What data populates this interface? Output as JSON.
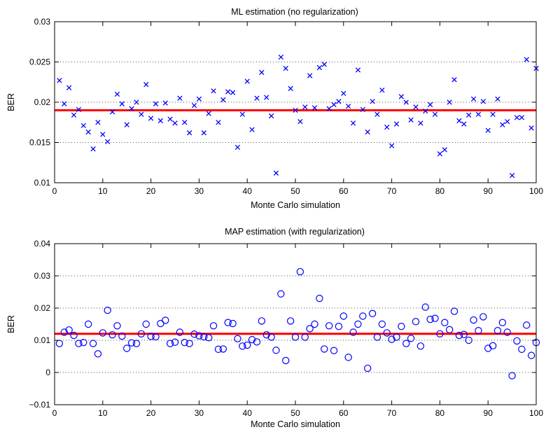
{
  "chart_data": [
    {
      "type": "scatter",
      "title": "ML estimation (no regularization)",
      "xlabel": "Monte Carlo simulation",
      "ylabel": "BER",
      "xlim": [
        0,
        100
      ],
      "ylim": [
        0.01,
        0.03
      ],
      "xticks": [
        0,
        10,
        20,
        30,
        40,
        50,
        60,
        70,
        80,
        90,
        100
      ],
      "yticks": [
        0.01,
        0.015,
        0.02,
        0.025,
        0.03
      ],
      "ytick_labels": [
        "0.01",
        "0.015",
        "0.02",
        "0.025",
        "0.03"
      ],
      "grid": "y-dotted",
      "marker": "x",
      "marker_color": "#0000ff",
      "mean_line_color": "#ff0000",
      "mean_value": 0.019,
      "x": [
        1,
        2,
        3,
        4,
        5,
        6,
        7,
        8,
        9,
        10,
        11,
        12,
        13,
        14,
        15,
        16,
        17,
        18,
        19,
        20,
        21,
        22,
        23,
        24,
        25,
        26,
        27,
        28,
        29,
        30,
        31,
        32,
        33,
        34,
        35,
        36,
        37,
        38,
        39,
        40,
        41,
        42,
        43,
        44,
        45,
        46,
        47,
        48,
        49,
        50,
        51,
        52,
        53,
        54,
        55,
        56,
        57,
        58,
        59,
        60,
        61,
        62,
        63,
        64,
        65,
        66,
        67,
        68,
        69,
        70,
        71,
        72,
        73,
        74,
        75,
        76,
        77,
        78,
        79,
        80,
        81,
        82,
        83,
        84,
        85,
        86,
        87,
        88,
        89,
        90,
        91,
        92,
        93,
        94,
        95,
        96,
        97,
        98,
        99,
        100
      ],
      "y": [
        0.0227,
        0.0198,
        0.0218,
        0.0184,
        0.0191,
        0.0171,
        0.0163,
        0.0142,
        0.0175,
        0.016,
        0.0151,
        0.0188,
        0.021,
        0.0198,
        0.0172,
        0.0192,
        0.02,
        0.0185,
        0.0222,
        0.018,
        0.0198,
        0.0177,
        0.0199,
        0.0179,
        0.0174,
        0.0205,
        0.0175,
        0.0162,
        0.0196,
        0.0204,
        0.0162,
        0.0186,
        0.0214,
        0.0175,
        0.0203,
        0.0213,
        0.0212,
        0.0144,
        0.0185,
        0.0226,
        0.0166,
        0.0205,
        0.0237,
        0.0206,
        0.0183,
        0.0112,
        0.0256,
        0.0242,
        0.0217,
        0.019,
        0.0176,
        0.0194,
        0.0233,
        0.0193,
        0.0243,
        0.0247,
        0.0192,
        0.0197,
        0.0201,
        0.0211,
        0.0195,
        0.0174,
        0.024,
        0.0191,
        0.0163,
        0.0201,
        0.0185,
        0.0215,
        0.0169,
        0.0146,
        0.0173,
        0.0207,
        0.02,
        0.0178,
        0.0194,
        0.0174,
        0.0189,
        0.0197,
        0.0185,
        0.0136,
        0.0141,
        0.02,
        0.0228,
        0.0177,
        0.0173,
        0.0184,
        0.0204,
        0.0185,
        0.0201,
        0.0165,
        0.0185,
        0.0204,
        0.0172,
        0.0176,
        0.0109,
        0.0181,
        0.0181,
        0.0253,
        0.0168,
        0.0242
      ]
    },
    {
      "type": "scatter",
      "title": "MAP estimation (with regularization)",
      "xlabel": "Monte Carlo simulation",
      "ylabel": "BER",
      "xlim": [
        0,
        100
      ],
      "ylim": [
        -0.01,
        0.04
      ],
      "xticks": [
        0,
        10,
        20,
        30,
        40,
        50,
        60,
        70,
        80,
        90,
        100
      ],
      "yticks": [
        -0.01,
        0,
        0.01,
        0.02,
        0.03,
        0.04
      ],
      "ytick_labels": [
        "−0.01",
        "0",
        "0.01",
        "0.02",
        "0.03",
        "0.04"
      ],
      "grid": "y-dotted",
      "marker": "o",
      "marker_color": "#0000ff",
      "mean_line_color": "#ff0000",
      "mean_value": 0.012,
      "x": [
        1,
        2,
        3,
        4,
        5,
        6,
        7,
        8,
        9,
        10,
        11,
        12,
        13,
        14,
        15,
        16,
        17,
        18,
        19,
        20,
        21,
        22,
        23,
        24,
        25,
        26,
        27,
        28,
        29,
        30,
        31,
        32,
        33,
        34,
        35,
        36,
        37,
        38,
        39,
        40,
        41,
        42,
        43,
        44,
        45,
        46,
        47,
        48,
        49,
        50,
        51,
        52,
        53,
        54,
        55,
        56,
        57,
        58,
        59,
        60,
        61,
        62,
        63,
        64,
        65,
        66,
        67,
        68,
        69,
        70,
        71,
        72,
        73,
        74,
        75,
        76,
        77,
        78,
        79,
        80,
        81,
        82,
        83,
        84,
        85,
        86,
        87,
        88,
        89,
        90,
        91,
        92,
        93,
        94,
        95,
        96,
        97,
        98,
        99,
        100
      ],
      "y": [
        0.009,
        0.0125,
        0.0132,
        0.0115,
        0.009,
        0.0093,
        0.015,
        0.009,
        0.0058,
        0.0123,
        0.0193,
        0.0117,
        0.0145,
        0.0113,
        0.0075,
        0.0092,
        0.009,
        0.012,
        0.015,
        0.0112,
        0.0111,
        0.0152,
        0.0162,
        0.009,
        0.0094,
        0.0125,
        0.0093,
        0.009,
        0.0119,
        0.0114,
        0.0111,
        0.0108,
        0.0145,
        0.0072,
        0.0073,
        0.0155,
        0.0152,
        0.0105,
        0.0082,
        0.0085,
        0.0102,
        0.0095,
        0.016,
        0.0117,
        0.011,
        0.0069,
        0.0244,
        0.0037,
        0.016,
        0.011,
        0.0313,
        0.011,
        0.0136,
        0.015,
        0.023,
        0.0073,
        0.0145,
        0.0068,
        0.0143,
        0.0175,
        0.0047,
        0.0125,
        0.015,
        0.0175,
        0.0013,
        0.0183,
        0.011,
        0.015,
        0.0123,
        0.0103,
        0.011,
        0.0143,
        0.009,
        0.0106,
        0.0158,
        0.0082,
        0.0203,
        0.0165,
        0.0168,
        0.012,
        0.0155,
        0.0133,
        0.019,
        0.0115,
        0.0118,
        0.01,
        0.0163,
        0.013,
        0.0173,
        0.0075,
        0.0083,
        0.013,
        0.0155,
        0.0125,
        -0.001,
        0.0098,
        0.0072,
        0.0147,
        0.0053,
        0.0093
      ]
    }
  ]
}
